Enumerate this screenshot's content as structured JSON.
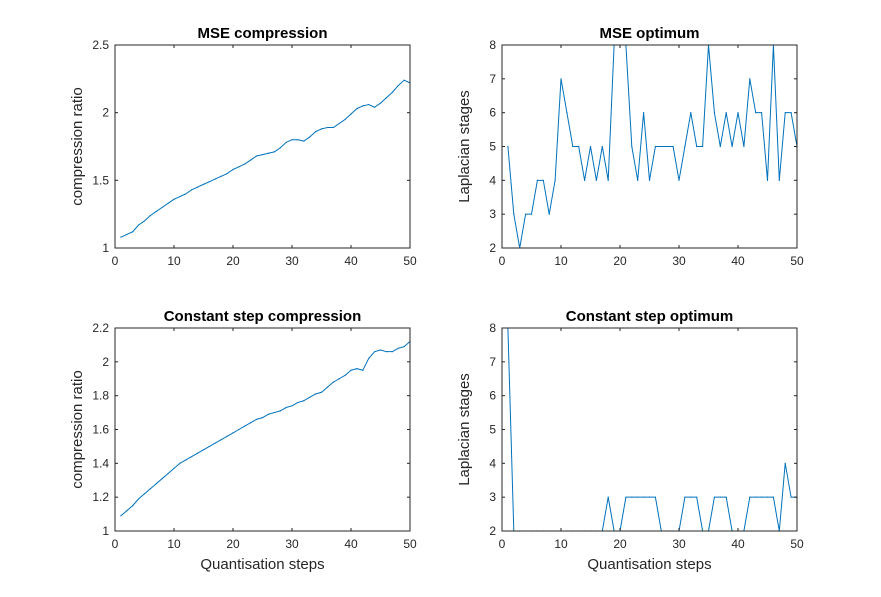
{
  "figure": {
    "line_color": "#0072BD",
    "axes_color": "#262626"
  },
  "chart_data": [
    {
      "type": "line",
      "title": "MSE compression",
      "xlabel": "",
      "ylabel": "compression ratio",
      "xlim": [
        0,
        50
      ],
      "ylim": [
        1,
        2.5
      ],
      "xticks": [
        0,
        10,
        20,
        30,
        40,
        50
      ],
      "yticks": [
        1,
        1.5,
        2,
        2.5
      ],
      "xtick_labels": [
        "0",
        "10",
        "20",
        "30",
        "40",
        "50"
      ],
      "ytick_labels": [
        "1",
        "1.5",
        "2",
        "2.5"
      ],
      "grid": false,
      "series": [
        {
          "x": [
            1,
            2,
            3,
            4,
            5,
            6,
            7,
            8,
            9,
            10,
            11,
            12,
            13,
            14,
            15,
            16,
            17,
            18,
            19,
            20,
            21,
            22,
            23,
            24,
            25,
            26,
            27,
            28,
            29,
            30,
            31,
            32,
            33,
            34,
            35,
            36,
            37,
            38,
            39,
            40,
            41,
            42,
            43,
            44,
            45,
            46,
            47,
            48,
            49,
            50
          ],
          "values": [
            1.08,
            1.1,
            1.12,
            1.17,
            1.2,
            1.24,
            1.27,
            1.3,
            1.33,
            1.36,
            1.38,
            1.4,
            1.43,
            1.45,
            1.47,
            1.49,
            1.51,
            1.53,
            1.55,
            1.58,
            1.6,
            1.62,
            1.65,
            1.68,
            1.69,
            1.7,
            1.71,
            1.74,
            1.78,
            1.8,
            1.8,
            1.79,
            1.82,
            1.86,
            1.88,
            1.89,
            1.89,
            1.92,
            1.95,
            1.99,
            2.03,
            2.05,
            2.06,
            2.04,
            2.07,
            2.11,
            2.15,
            2.2,
            2.24,
            2.22
          ]
        }
      ]
    },
    {
      "type": "line",
      "title": "MSE optimum",
      "xlabel": "",
      "ylabel": "Laplacian stages",
      "xlim": [
        0,
        50
      ],
      "ylim": [
        2,
        8
      ],
      "xticks": [
        0,
        10,
        20,
        30,
        40,
        50
      ],
      "yticks": [
        2,
        3,
        4,
        5,
        6,
        7,
        8
      ],
      "xtick_labels": [
        "0",
        "10",
        "20",
        "30",
        "40",
        "50"
      ],
      "ytick_labels": [
        "2",
        "3",
        "4",
        "5",
        "6",
        "7",
        "8"
      ],
      "grid": false,
      "series": [
        {
          "x": [
            1,
            2,
            3,
            4,
            5,
            6,
            7,
            8,
            9,
            10,
            11,
            12,
            13,
            14,
            15,
            16,
            17,
            18,
            19,
            20,
            21,
            22,
            23,
            24,
            25,
            26,
            27,
            28,
            29,
            30,
            31,
            32,
            33,
            34,
            35,
            36,
            37,
            38,
            39,
            40,
            41,
            42,
            43,
            44,
            45,
            46,
            47,
            48,
            49,
            50
          ],
          "values": [
            5,
            3,
            2,
            3,
            3,
            4,
            4,
            3,
            4,
            7,
            6,
            5,
            5,
            4,
            5,
            4,
            5,
            4,
            8,
            8,
            8,
            5,
            4,
            6,
            4,
            5,
            5,
            5,
            5,
            4,
            5,
            6,
            5,
            5,
            8,
            6,
            5,
            6,
            5,
            6,
            5,
            7,
            6,
            6,
            4,
            8,
            4,
            6,
            6,
            5
          ]
        }
      ]
    },
    {
      "type": "line",
      "title": "Constant step compression",
      "xlabel": "Quantisation steps",
      "ylabel": "compression ratio",
      "xlim": [
        0,
        50
      ],
      "ylim": [
        1,
        2.2
      ],
      "xticks": [
        0,
        10,
        20,
        30,
        40,
        50
      ],
      "yticks": [
        1,
        1.2,
        1.4,
        1.6,
        1.8,
        2,
        2.2
      ],
      "xtick_labels": [
        "0",
        "10",
        "20",
        "30",
        "40",
        "50"
      ],
      "ytick_labels": [
        "1",
        "1.2",
        "1.4",
        "1.6",
        "1.8",
        "2",
        "2.2"
      ],
      "grid": false,
      "series": [
        {
          "x": [
            1,
            2,
            3,
            4,
            5,
            6,
            7,
            8,
            9,
            10,
            11,
            12,
            13,
            14,
            15,
            16,
            17,
            18,
            19,
            20,
            21,
            22,
            23,
            24,
            25,
            26,
            27,
            28,
            29,
            30,
            31,
            32,
            33,
            34,
            35,
            36,
            37,
            38,
            39,
            40,
            41,
            42,
            43,
            44,
            45,
            46,
            47,
            48,
            49,
            50
          ],
          "values": [
            1.09,
            1.12,
            1.15,
            1.19,
            1.22,
            1.25,
            1.28,
            1.31,
            1.34,
            1.37,
            1.4,
            1.42,
            1.44,
            1.46,
            1.48,
            1.5,
            1.52,
            1.54,
            1.56,
            1.58,
            1.6,
            1.62,
            1.64,
            1.66,
            1.67,
            1.69,
            1.7,
            1.71,
            1.73,
            1.74,
            1.76,
            1.77,
            1.79,
            1.81,
            1.82,
            1.85,
            1.88,
            1.9,
            1.92,
            1.95,
            1.96,
            1.95,
            2.02,
            2.06,
            2.07,
            2.06,
            2.06,
            2.08,
            2.09,
            2.12
          ]
        }
      ]
    },
    {
      "type": "line",
      "title": "Constant step optimum",
      "xlabel": "Quantisation steps",
      "ylabel": "Laplacian stages",
      "xlim": [
        0,
        50
      ],
      "ylim": [
        2,
        8
      ],
      "xticks": [
        0,
        10,
        20,
        30,
        40,
        50
      ],
      "yticks": [
        2,
        3,
        4,
        5,
        6,
        7,
        8
      ],
      "xtick_labels": [
        "0",
        "10",
        "20",
        "30",
        "40",
        "50"
      ],
      "ytick_labels": [
        "2",
        "3",
        "4",
        "5",
        "6",
        "7",
        "8"
      ],
      "grid": false,
      "series": [
        {
          "x": [
            1,
            2,
            3,
            4,
            5,
            6,
            7,
            8,
            9,
            10,
            11,
            12,
            13,
            14,
            15,
            16,
            17,
            18,
            19,
            20,
            21,
            22,
            23,
            24,
            25,
            26,
            27,
            28,
            29,
            30,
            31,
            32,
            33,
            34,
            35,
            36,
            37,
            38,
            39,
            40,
            41,
            42,
            43,
            44,
            45,
            46,
            47,
            48,
            49,
            50
          ],
          "values": [
            8,
            2,
            2,
            2,
            2,
            2,
            2,
            2,
            2,
            2,
            2,
            2,
            2,
            2,
            2,
            2,
            2,
            3,
            2,
            2,
            3,
            3,
            3,
            3,
            3,
            3,
            2,
            2,
            2,
            2,
            3,
            3,
            3,
            2,
            2,
            3,
            3,
            3,
            2,
            2,
            2,
            3,
            3,
            3,
            3,
            3,
            2,
            4,
            3,
            3
          ]
        }
      ]
    }
  ]
}
